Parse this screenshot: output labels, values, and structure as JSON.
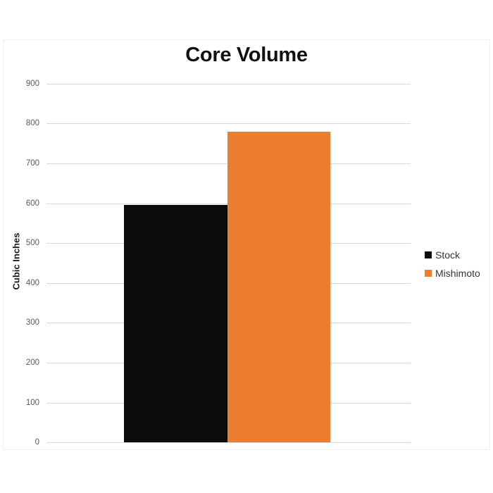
{
  "chart_data": {
    "type": "bar",
    "title": "Core Volume",
    "ylabel": "Cubic Inches",
    "categories": [
      ""
    ],
    "series": [
      {
        "name": "Stock",
        "value": 595,
        "color": "#0b0b0b"
      },
      {
        "name": "Mishimoto",
        "value": 780,
        "color": "#ed7d31"
      }
    ],
    "ylim": [
      0,
      900
    ],
    "yticks": [
      0,
      100,
      200,
      300,
      400,
      500,
      600,
      700,
      800,
      900
    ],
    "grid": true,
    "gridline_color": "#d9d9d9",
    "tick_label_color": "#595959",
    "legend_position": "right",
    "background": "#ffffff"
  }
}
